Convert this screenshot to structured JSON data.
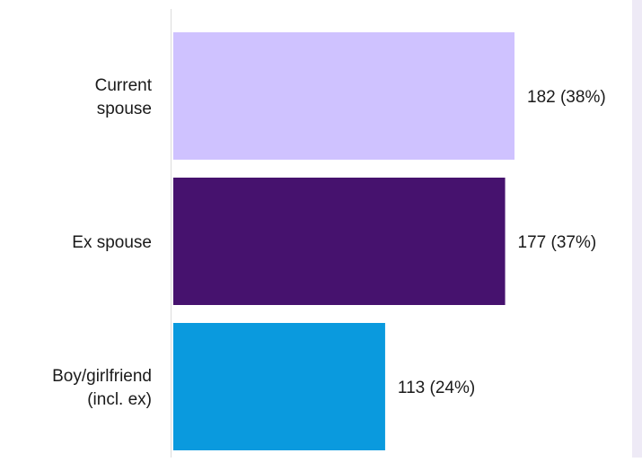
{
  "chart_data": {
    "type": "bar",
    "orientation": "horizontal",
    "categories": [
      [
        "Current",
        "spouse"
      ],
      [
        "Ex spouse"
      ],
      [
        "Boy/girlfriend",
        "(incl. ex)"
      ]
    ],
    "values": [
      182,
      177,
      113
    ],
    "value_labels": [
      "182 (38%)",
      "177 (37%)",
      "113 (24%)"
    ],
    "bar_colors": [
      "#cfc2ff",
      "#46126e",
      "#0a9ade"
    ],
    "xlim": [
      0,
      185
    ],
    "title": "",
    "xlabel": "",
    "ylabel": "",
    "grid": false,
    "legend": "none"
  }
}
